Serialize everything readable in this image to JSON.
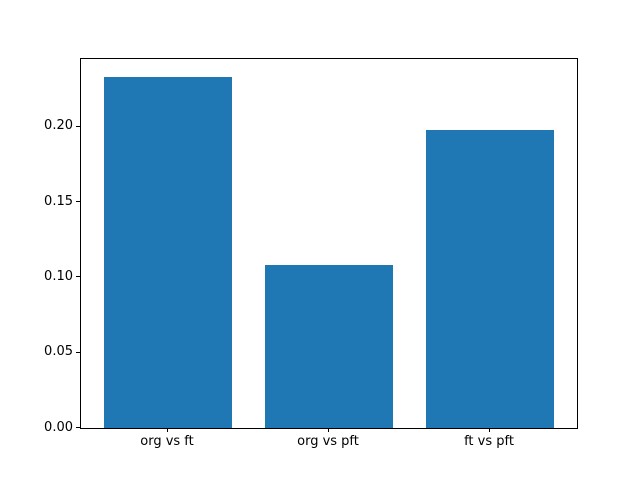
{
  "figure": {
    "background": "#ffffff",
    "frame_color": "#000000"
  },
  "chart_data": {
    "type": "bar",
    "title": "",
    "xlabel": "",
    "ylabel": "",
    "categories": [
      "org vs ft",
      "org vs pft",
      "ft vs pft"
    ],
    "values": [
      0.233,
      0.108,
      0.198
    ],
    "ylim": [
      0,
      0.245
    ],
    "yticks": [
      0.0,
      0.05,
      0.1,
      0.15,
      0.2
    ],
    "ytick_labels": [
      "0.00",
      "0.05",
      "0.10",
      "0.15",
      "0.20"
    ],
    "bar_color": "#1f77b4",
    "bar_width_fraction": 0.8,
    "x_margin_units": 0.14,
    "grid": false,
    "legend": null
  }
}
